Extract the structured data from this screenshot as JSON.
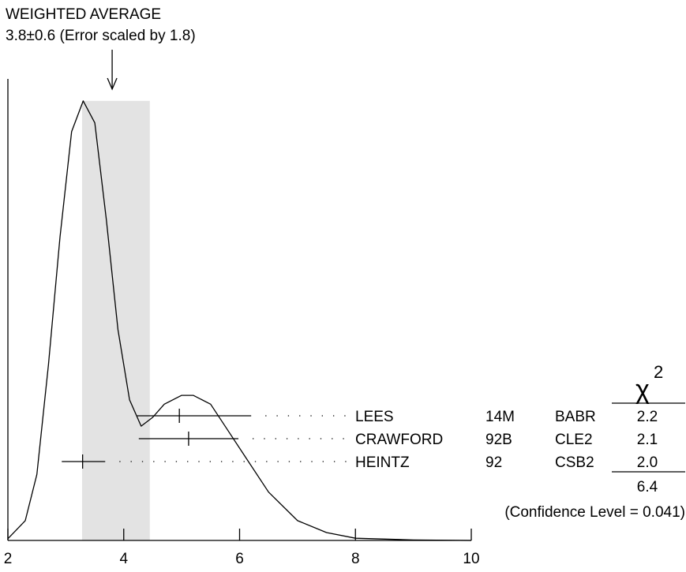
{
  "chart_data": {
    "type": "ideogram",
    "title": "WEIGHTED AVERAGE",
    "subtitle": "3.8±0.6 (Error scaled by 1.8)",
    "average": 3.8,
    "band": [
      3.28,
      4.45
    ],
    "band_color": "#e3e3e3",
    "xlim": [
      2,
      10
    ],
    "xticks": [
      2,
      4,
      6,
      8,
      10
    ],
    "ylim": [
      0,
      1.05
    ],
    "curve": {
      "x": [
        2.0,
        2.3,
        2.5,
        2.7,
        2.9,
        3.1,
        3.3,
        3.5,
        3.7,
        3.9,
        4.1,
        4.3,
        4.5,
        4.7,
        5.0,
        5.2,
        5.5,
        5.8,
        6.1,
        6.5,
        7.0,
        7.5,
        8.0,
        9.0,
        10.0
      ],
      "y": [
        0.004,
        0.045,
        0.15,
        0.4,
        0.69,
        0.93,
        1.0,
        0.95,
        0.73,
        0.48,
        0.32,
        0.26,
        0.28,
        0.31,
        0.33,
        0.33,
        0.31,
        0.25,
        0.19,
        0.11,
        0.045,
        0.018,
        0.005,
        0.001,
        0
      ]
    },
    "measurements": {
      "names": [
        "LEES",
        "CRAWFORD",
        "HEINTZ"
      ],
      "refs": [
        "14M",
        "92B",
        "92"
      ],
      "techs": [
        "BABR",
        "CLE2",
        "CSB2"
      ],
      "values": [
        4.96,
        5.12,
        3.29
      ],
      "lower": [
        4.23,
        4.26,
        2.93
      ],
      "upper": [
        6.2,
        5.98,
        3.68
      ],
      "chi2": [
        2.2,
        2.1,
        2.0
      ],
      "chi2_labels": [
        "2.2",
        "2.1",
        "2.0"
      ]
    },
    "chi2_symbol": "χ",
    "chi2_power": "2",
    "chi2_total": 6.4,
    "confidence_text": "(Confidence Level = 0.041)"
  }
}
